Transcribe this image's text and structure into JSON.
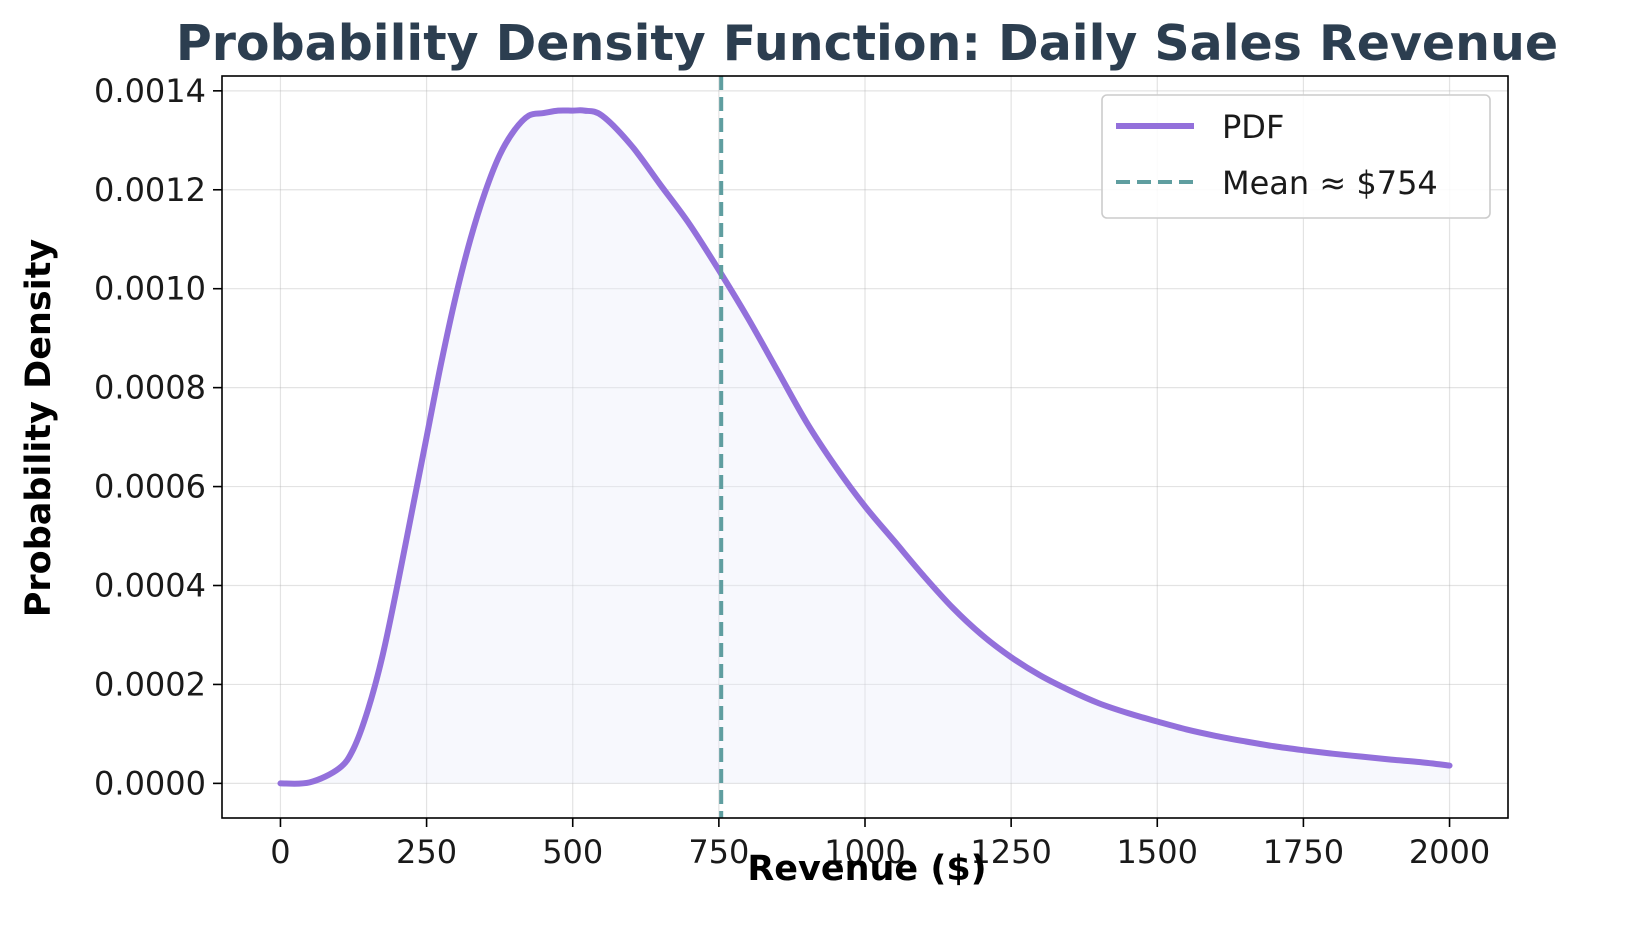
{
  "chart_data": {
    "type": "line",
    "title": "Probability Density Function: Daily Sales Revenue",
    "xlabel": "Revenue ($)",
    "ylabel": "Probability Density",
    "xlim": [
      -100,
      2100
    ],
    "ylim": [
      -7e-05,
      0.00143
    ],
    "x_ticks": [
      0,
      250,
      500,
      750,
      1000,
      1250,
      1500,
      1750,
      2000
    ],
    "x_tick_labels": [
      "0",
      "250",
      "500",
      "750",
      "1000",
      "1250",
      "1500",
      "1750",
      "2000"
    ],
    "y_ticks": [
      0,
      0.0002,
      0.0004,
      0.0006,
      0.0008,
      0.001,
      0.0012,
      0.0014
    ],
    "y_tick_labels": [
      "0.0000",
      "0.0002",
      "0.0004",
      "0.0006",
      "0.0008",
      "0.0010",
      "0.0012",
      "0.0014"
    ],
    "grid": true,
    "legend_position": "top-right",
    "series": [
      {
        "name": "PDF",
        "color": "#9370db",
        "fill": true,
        "x": [
          0,
          50,
          100,
          125,
          150,
          175,
          200,
          225,
          250,
          275,
          300,
          325,
          350,
          375,
          400,
          425,
          450,
          475,
          500,
          520,
          550,
          600,
          650,
          700,
          754,
          800,
          850,
          900,
          950,
          1000,
          1050,
          1100,
          1150,
          1200,
          1250,
          1300,
          1350,
          1400,
          1450,
          1500,
          1550,
          1600,
          1650,
          1700,
          1750,
          1800,
          1850,
          1900,
          1950,
          2000
        ],
        "values": [
          0.0,
          2e-06,
          3e-05,
          7e-05,
          0.00015,
          0.00026,
          0.0004,
          0.00055,
          0.0007,
          0.00085,
          0.000985,
          0.0011,
          0.001195,
          0.00127,
          0.00132,
          0.00135,
          0.001355,
          0.00136,
          0.00136,
          0.00136,
          0.00135,
          0.00129,
          0.00121,
          0.00113,
          0.00103,
          0.00094,
          0.000835,
          0.00073,
          0.00064,
          0.00056,
          0.00049,
          0.00042,
          0.000355,
          0.0003,
          0.000255,
          0.000218,
          0.000188,
          0.000162,
          0.000142,
          0.000125,
          0.000109,
          9.6e-05,
          8.5e-05,
          7.5e-05,
          6.7e-05,
          6e-05,
          5.4e-05,
          4.8e-05,
          4.3e-05,
          3.6e-05
        ]
      }
    ],
    "reference_lines": [
      {
        "name": "Mean ≈ $754",
        "x": 754,
        "color": "#5f9ea0",
        "style": "dashed"
      }
    ]
  }
}
